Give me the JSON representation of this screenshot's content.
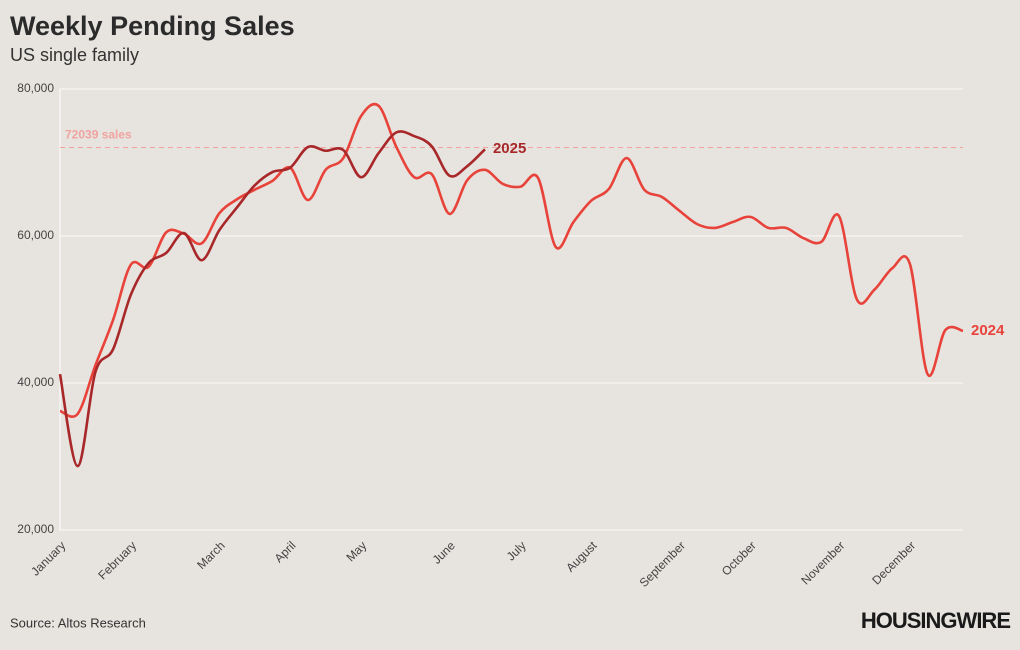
{
  "chart_data": {
    "type": "line",
    "title": "Weekly Pending Sales",
    "subtitle": "US single family",
    "source": "Source: Altos Research",
    "brand": "HOUSINGWIRE",
    "categories": [
      "January",
      null,
      null,
      null,
      "February",
      null,
      null,
      null,
      null,
      "March",
      null,
      null,
      null,
      "April",
      null,
      null,
      null,
      "May",
      null,
      null,
      null,
      null,
      "June",
      null,
      null,
      null,
      "July",
      null,
      null,
      null,
      "August",
      null,
      null,
      null,
      null,
      "September",
      null,
      null,
      null,
      "October",
      null,
      null,
      null,
      null,
      "November",
      null,
      null,
      null,
      "December",
      null,
      null,
      null
    ],
    "series": [
      {
        "name": "2024",
        "color": "#e8433a",
        "values": [
          36200,
          35800,
          42400,
          48600,
          56100,
          55800,
          60500,
          60300,
          59000,
          63100,
          65000,
          66300,
          67500,
          69300,
          64900,
          69000,
          70600,
          76300,
          77700,
          72100,
          68000,
          68400,
          63000,
          67600,
          69000,
          67100,
          66700,
          67900,
          58500,
          61900,
          64800,
          66400,
          70600,
          66300,
          65300,
          63400,
          61600,
          61100,
          61900,
          62600,
          61100,
          61100,
          59700,
          59200,
          62700,
          51400,
          52700,
          55600,
          56200,
          41200,
          47200,
          47100
        ]
      },
      {
        "name": "2025",
        "color": "#a8282a",
        "values": [
          41200,
          28700,
          41500,
          44600,
          52000,
          56300,
          57700,
          60400,
          56700,
          60800,
          63900,
          66900,
          68700,
          69300,
          72100,
          71600,
          71700,
          68000,
          71300,
          74100,
          73600,
          72200,
          68200,
          69500,
          71800,
          null,
          null,
          null,
          null,
          null,
          null,
          null,
          null,
          null,
          null,
          null,
          null,
          null,
          null,
          null,
          null,
          null,
          null,
          null,
          null,
          null,
          null,
          null,
          null,
          null,
          null,
          null
        ]
      }
    ],
    "reference_line": {
      "value": 72039,
      "label": "72039 sales",
      "color": "#f0a3a0"
    },
    "ylim": [
      20000,
      80000
    ],
    "yticks": [
      {
        "value": 20000,
        "label": "20,000"
      },
      {
        "value": 40000,
        "label": "40,000"
      },
      {
        "value": 60000,
        "label": "60,000"
      },
      {
        "value": 80000,
        "label": "80,000"
      }
    ],
    "grid": true
  }
}
